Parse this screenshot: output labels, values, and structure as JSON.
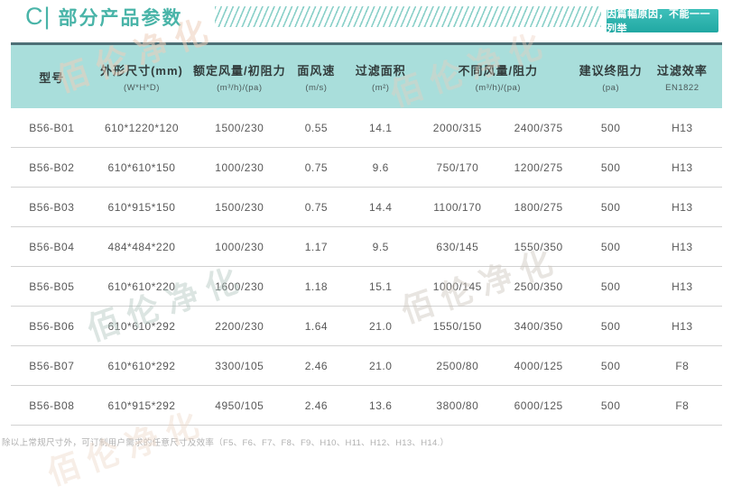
{
  "page": {
    "title_prefix": "C|",
    "title": "部分产品参数",
    "badge": "因篇幅原因，不能一一列举",
    "footnote": "除以上常规尺寸外，可订制用户需求的任意尺寸及效率（F5、F6、F7、F8、F9、H10、H11、H12、H13、H14.）",
    "watermark": "佰伦净化"
  },
  "colors": {
    "accent_teal": "#49b4a8",
    "badge_gradient_top": "#3fc0ba",
    "badge_gradient_bottom": "#21a8a3",
    "header_band": "#a9dedb",
    "table_top_border": "#4d6f76",
    "row_divider": "#d2d2d2"
  },
  "table": {
    "columns": [
      {
        "label": "型号",
        "sub": ""
      },
      {
        "label": "外形尺寸(mm)",
        "sub": "(W*H*D)"
      },
      {
        "label": "额定风量/初阻力",
        "sub": "(m³/h)/(pa)"
      },
      {
        "label": "面风速",
        "sub": "(m/s)"
      },
      {
        "label": "过滤面积",
        "sub": "(m²)"
      },
      {
        "label": "不同风量/阻力",
        "sub": "(m³/h)/(pa)",
        "span": 2
      },
      {
        "label": "建议终阻力",
        "sub": "(pa)"
      },
      {
        "label": "过滤效率",
        "sub": "EN1822"
      }
    ],
    "rows": [
      [
        "B56-B01",
        "610*1220*120",
        "1500/230",
        "0.55",
        "14.1",
        "2000/315",
        "2400/375",
        "500",
        "H13"
      ],
      [
        "B56-B02",
        "610*610*150",
        "1000/230",
        "0.75",
        "9.6",
        "750/170",
        "1200/275",
        "500",
        "H13"
      ],
      [
        "B56-B03",
        "610*915*150",
        "1500/230",
        "0.75",
        "14.4",
        "1100/170",
        "1800/275",
        "500",
        "H13"
      ],
      [
        "B56-B04",
        "484*484*220",
        "1000/230",
        "1.17",
        "9.5",
        "630/145",
        "1550/350",
        "500",
        "H13"
      ],
      [
        "B56-B05",
        "610*610*220",
        "1600/230",
        "1.18",
        "15.1",
        "1000/145",
        "2500/350",
        "500",
        "H13"
      ],
      [
        "B56-B06",
        "610*610*292",
        "2200/230",
        "1.64",
        "21.0",
        "1550/150",
        "3400/350",
        "500",
        "H13"
      ],
      [
        "B56-B07",
        "610*610*292",
        "3300/105",
        "2.46",
        "21.0",
        "2500/80",
        "4000/125",
        "500",
        "F8"
      ],
      [
        "B56-B08",
        "610*915*292",
        "4950/105",
        "2.46",
        "13.6",
        "3800/80",
        "6000/125",
        "500",
        "F8"
      ]
    ]
  }
}
